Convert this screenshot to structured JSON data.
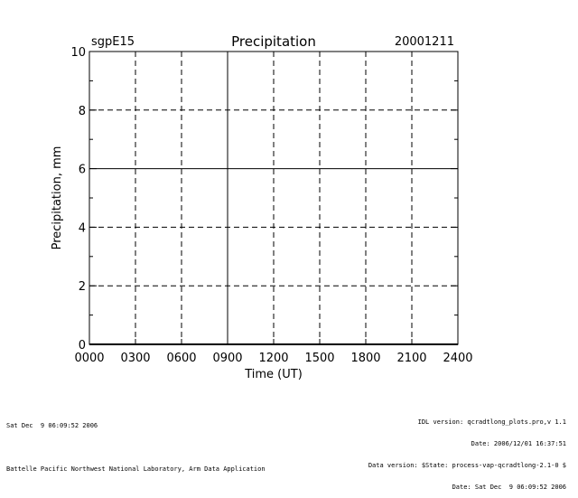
{
  "chart_data": {
    "type": "line",
    "title": "Precipitation",
    "site": "sgpE15",
    "date": "20001211",
    "xlabel": "Time (UT)",
    "ylabel": "Precipitation, mm",
    "x_ticks": [
      0,
      3,
      6,
      9,
      12,
      15,
      18,
      21,
      24
    ],
    "x_tick_labels": [
      "0000",
      "0300",
      "0600",
      "0900",
      "1200",
      "1500",
      "1800",
      "2100",
      "2400"
    ],
    "y_ticks": [
      0,
      2,
      4,
      6,
      8,
      10
    ],
    "y_tick_labels": [
      "0",
      "2",
      "4",
      "6",
      "8",
      "10"
    ],
    "xlim": [
      0,
      24
    ],
    "ylim": [
      0,
      10
    ],
    "grid": true,
    "series": [
      {
        "values": []
      }
    ]
  },
  "footer": {
    "left_lines": [
      "Sat Dec  9 06:09:52 2006",
      "",
      "Battelle Pacific Northwest National Laboratory, Arm Data Application"
    ],
    "right_lines": [
      "IDL version: qcradtlong_plots.pro,v 1.1",
      "Date: 2006/12/01 16:37:51",
      "Data version: $State: process-vap-qcradtlong-2.1-0 $",
      "Date: Sat Dec  9 06:09:52 2006"
    ]
  }
}
